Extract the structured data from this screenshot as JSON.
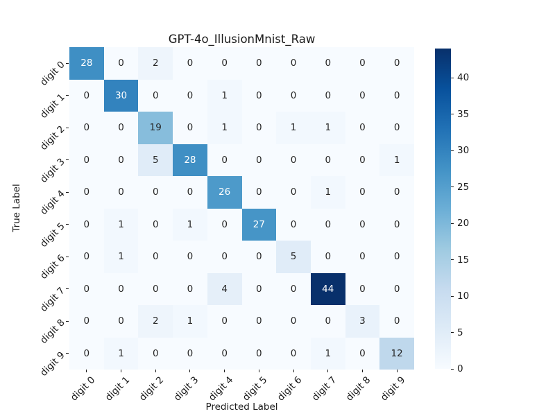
{
  "chart_data": {
    "type": "heatmap",
    "title": "GPT-4o_IllusionMnist_Raw",
    "xlabel": "Predicted Label",
    "ylabel": "True Label",
    "x_categories": [
      "digit 0",
      "digit 1",
      "digit 2",
      "digit 3",
      "digit 4",
      "digit 5",
      "digit 6",
      "digit 7",
      "digit 8",
      "digit 9"
    ],
    "y_categories": [
      "digit 0",
      "digit 1",
      "digit 2",
      "digit 3",
      "digit 4",
      "digit 5",
      "digit 6",
      "digit 7",
      "digit 8",
      "digit 9"
    ],
    "matrix": [
      [
        28,
        0,
        2,
        0,
        0,
        0,
        0,
        0,
        0,
        0
      ],
      [
        0,
        30,
        0,
        0,
        1,
        0,
        0,
        0,
        0,
        0
      ],
      [
        0,
        0,
        19,
        0,
        1,
        0,
        1,
        1,
        0,
        0
      ],
      [
        0,
        0,
        5,
        28,
        0,
        0,
        0,
        0,
        0,
        1
      ],
      [
        0,
        0,
        0,
        0,
        26,
        0,
        0,
        1,
        0,
        0
      ],
      [
        0,
        1,
        0,
        1,
        0,
        27,
        0,
        0,
        0,
        0
      ],
      [
        0,
        1,
        0,
        0,
        0,
        0,
        5,
        0,
        0,
        0
      ],
      [
        0,
        0,
        0,
        0,
        4,
        0,
        0,
        44,
        0,
        0
      ],
      [
        0,
        0,
        2,
        1,
        0,
        0,
        0,
        0,
        3,
        0
      ],
      [
        0,
        1,
        0,
        0,
        0,
        0,
        0,
        1,
        0,
        12
      ]
    ],
    "vmin": 0,
    "vmax": 44,
    "colormap": "Blues",
    "colorbar_ticks": [
      0,
      5,
      10,
      15,
      20,
      25,
      30,
      35,
      40
    ],
    "colorbar_position": "right",
    "tick_rotation_degrees": 45,
    "grid": false
  },
  "colors": {
    "background": "#ffffff",
    "text": "#1a1a1a",
    "annotation_dark": "#262626",
    "annotation_light": "#ffffff",
    "blues_stops": [
      "#f7fbff",
      "#deebf7",
      "#c6dbef",
      "#9ecae1",
      "#6baed6",
      "#4292c6",
      "#2171b5",
      "#08519c",
      "#08306b"
    ]
  }
}
